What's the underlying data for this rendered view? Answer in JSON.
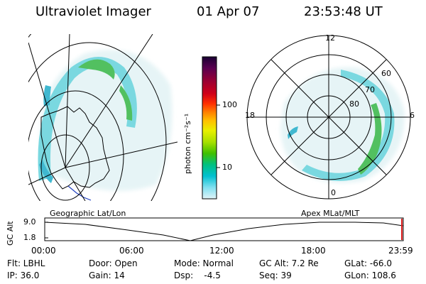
{
  "header": {
    "title": "Ultraviolet Imager",
    "date": "01 Apr 07",
    "time": "23:53:48 UT"
  },
  "colorbar": {
    "unit_label": "photon cm⁻²s⁻¹",
    "ticks": [
      "100",
      "10"
    ],
    "scale": "log",
    "colors": [
      "#1a0033",
      "#5a0050",
      "#a00030",
      "#d00018",
      "#ff3000",
      "#ff8000",
      "#ffc000",
      "#e8f000",
      "#a8e000",
      "#40c000",
      "#00c080",
      "#00c0d0",
      "#80e0f0",
      "#e0f4f8"
    ]
  },
  "polar": {
    "mlt_labels": [
      "12",
      "18",
      "6",
      "0"
    ],
    "lat_labels": [
      "60",
      "70",
      "80"
    ]
  },
  "timeline": {
    "left_label": "Geographic Lat/Lon",
    "right_label": "Apex MLat/MLT",
    "axis_title": "GC Alt",
    "y_ticks": [
      "9.0",
      "1.8"
    ],
    "x_ticks": [
      "00:00",
      "06:00",
      "12:00",
      "18:00",
      "23:59"
    ],
    "marker_color": "#e02020"
  },
  "footer": {
    "filter": "Flt: LBHL",
    "door": "Door: Open",
    "mode": "Mode: Normal",
    "gc_alt": "GC Alt: 7.2 Re",
    "glat": "GLat: -66.0",
    "ip": "IP: 36.0",
    "gain": "Gain: 14",
    "dsp": "Dsp:    -4.5",
    "seq": "Seq: 39",
    "glon": "GLon: 108.6"
  }
}
